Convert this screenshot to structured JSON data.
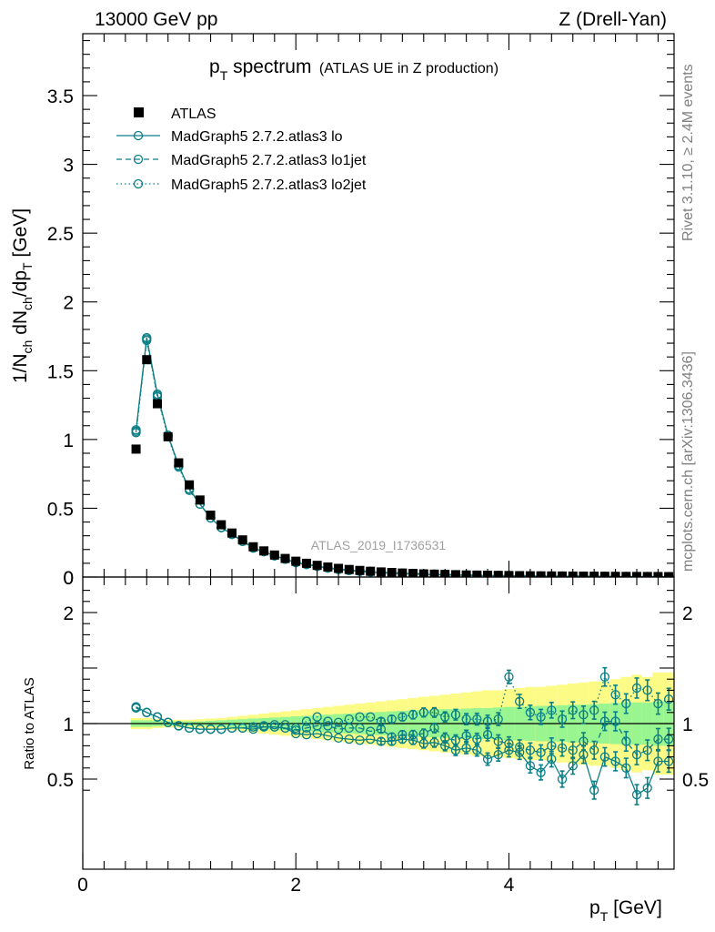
{
  "header": {
    "left": "13000 GeV pp",
    "right": "Z (Drell-Yan)"
  },
  "side_labels": {
    "rivet": "Rivet 3.1.10, ≥ 2.4M events",
    "mcplots": "mcplots.cern.ch [arXiv:1306.3436]"
  },
  "plot_title": {
    "main_p": "p",
    "main_sub": "T",
    "main_rest": " spectrum",
    "note": "(ATLAS UE in Z production)"
  },
  "analysis_id": "ATLAS_2019_I1736531",
  "colors": {
    "data": "#000000",
    "mc": "#0b7f86",
    "band_inner": "#99f58f",
    "band_outer": "#fbfb86",
    "axis": "#000000",
    "side_text": "#808080"
  },
  "chart_data": [
    {
      "type": "line",
      "title": "pT spectrum (ATLAS UE in Z production)",
      "xlabel": "p_T [GeV]",
      "ylabel": "1/N_ch dN_ch/dp_T [GeV]",
      "xlim": [
        0,
        5.55
      ],
      "ylim": [
        0,
        3.95
      ],
      "x_ticks": [
        "0",
        "2",
        "4"
      ],
      "y_ticks": [
        "0",
        "0.5",
        "1",
        "1.5",
        "2",
        "2.5",
        "3",
        "3.5"
      ],
      "legend_position": "top-left",
      "legend": [
        "ATLAS",
        "MadGraph5 2.7.2.atlas3 lo",
        "MadGraph5 2.7.2.atlas3 lo1jet",
        "MadGraph5 2.7.2.atlas3 lo2jet"
      ],
      "x": [
        0.5,
        0.6,
        0.7,
        0.8,
        0.9,
        1.0,
        1.1,
        1.2,
        1.3,
        1.4,
        1.5,
        1.6,
        1.7,
        1.8,
        1.9,
        2.0,
        2.1,
        2.2,
        2.3,
        2.4,
        2.5,
        2.6,
        2.7,
        2.8,
        2.9,
        3.0,
        3.1,
        3.2,
        3.3,
        3.4,
        3.5,
        3.6,
        3.7,
        3.8,
        3.9,
        4.0,
        4.1,
        4.2,
        4.3,
        4.4,
        4.5,
        4.6,
        4.7,
        4.8,
        4.9,
        5.0,
        5.1,
        5.2,
        5.3,
        5.4,
        5.5
      ],
      "series": [
        {
          "name": "ATLAS",
          "marker": "filled-square",
          "values": [
            0.93,
            1.58,
            1.26,
            1.02,
            0.83,
            0.67,
            0.56,
            0.45,
            0.38,
            0.32,
            0.27,
            0.22,
            0.19,
            0.16,
            0.135,
            0.115,
            0.1,
            0.085,
            0.073,
            0.063,
            0.055,
            0.048,
            0.042,
            0.037,
            0.033,
            0.029,
            0.026,
            0.023,
            0.021,
            0.019,
            0.017,
            0.015,
            0.014,
            0.013,
            0.012,
            0.011,
            0.01,
            0.009,
            0.0085,
            0.008,
            0.0075,
            0.007,
            0.0065,
            0.006,
            0.0055,
            0.005,
            0.0046,
            0.0042,
            0.0039,
            0.0036,
            0.0033
          ]
        },
        {
          "name": "MadGraph5 2.7.2.atlas3 lo",
          "style": "solid",
          "values": [
            1.07,
            1.74,
            1.33,
            1.03,
            0.81,
            0.64,
            0.53,
            0.43,
            0.36,
            0.31,
            0.26,
            0.21,
            0.185,
            0.155,
            0.13,
            0.105,
            0.09,
            0.077,
            0.065,
            0.055,
            0.047,
            0.041,
            0.036,
            0.031,
            0.028,
            0.025,
            0.022,
            0.019,
            0.017,
            0.015,
            0.013,
            0.012,
            0.011,
            0.01,
            0.009,
            0.008,
            0.007,
            0.006,
            0.0055,
            0.005,
            0.0045,
            0.0042,
            0.0038,
            0.0035,
            0.003,
            0.0028,
            0.0025,
            0.0023,
            0.002,
            0.0018,
            0.0016
          ]
        },
        {
          "name": "MadGraph5 2.7.2.atlas3 lo1jet",
          "style": "dashed",
          "values": [
            1.06,
            1.73,
            1.32,
            1.03,
            0.81,
            0.64,
            0.53,
            0.43,
            0.36,
            0.31,
            0.26,
            0.215,
            0.185,
            0.155,
            0.13,
            0.107,
            0.092,
            0.079,
            0.067,
            0.057,
            0.05,
            0.044,
            0.039,
            0.034,
            0.03,
            0.027,
            0.024,
            0.021,
            0.019,
            0.017,
            0.015,
            0.013,
            0.012,
            0.011,
            0.01,
            0.009,
            0.008,
            0.0075,
            0.007,
            0.0065,
            0.006,
            0.0055,
            0.005,
            0.0045,
            0.004,
            0.0038,
            0.0035,
            0.0032,
            0.003,
            0.0028,
            0.0026
          ]
        },
        {
          "name": "MadGraph5 2.7.2.atlas3 lo2jet",
          "style": "dotted",
          "values": [
            1.05,
            1.72,
            1.31,
            1.02,
            0.8,
            0.63,
            0.53,
            0.43,
            0.36,
            0.31,
            0.26,
            0.215,
            0.185,
            0.155,
            0.13,
            0.11,
            0.095,
            0.082,
            0.07,
            0.06,
            0.052,
            0.046,
            0.041,
            0.036,
            0.032,
            0.029,
            0.026,
            0.023,
            0.021,
            0.019,
            0.017,
            0.015,
            0.014,
            0.013,
            0.012,
            0.011,
            0.01,
            0.009,
            0.0085,
            0.008,
            0.0075,
            0.007,
            0.0065,
            0.006,
            0.0055,
            0.005,
            0.0046,
            0.0042,
            0.0039,
            0.0036,
            0.0033
          ]
        }
      ]
    },
    {
      "type": "line",
      "xlabel": "p_T [GeV]",
      "ylabel": "Ratio to ATLAS",
      "xlim": [
        0,
        5.55
      ],
      "ylim": [
        0.35,
        2.3
      ],
      "x_ticks": [
        "0",
        "2",
        "4"
      ],
      "y_ticks": [
        "0.5",
        "1",
        "2"
      ],
      "x": [
        0.5,
        0.6,
        0.7,
        0.8,
        0.9,
        1.0,
        1.1,
        1.2,
        1.3,
        1.4,
        1.5,
        1.6,
        1.7,
        1.8,
        1.9,
        2.0,
        2.1,
        2.2,
        2.3,
        2.4,
        2.5,
        2.6,
        2.7,
        2.8,
        2.9,
        3.0,
        3.1,
        3.2,
        3.3,
        3.4,
        3.5,
        3.6,
        3.7,
        3.8,
        3.9,
        4.0,
        4.1,
        4.2,
        4.3,
        4.4,
        4.5,
        4.6,
        4.7,
        4.8,
        4.9,
        5.0,
        5.1,
        5.2,
        5.3,
        5.4,
        5.5
      ],
      "uncertainty_bands": {
        "inner": [
          0.03,
          0.03,
          0.025,
          0.02,
          0.02,
          0.02,
          0.02,
          0.025,
          0.03,
          0.035,
          0.04,
          0.045,
          0.05,
          0.055,
          0.06,
          0.065,
          0.07,
          0.075,
          0.08,
          0.085,
          0.09,
          0.095,
          0.1,
          0.105,
          0.11,
          0.115,
          0.12,
          0.12,
          0.125,
          0.13,
          0.13,
          0.135,
          0.14,
          0.14,
          0.145,
          0.15,
          0.15,
          0.155,
          0.16,
          0.16,
          0.165,
          0.17,
          0.17,
          0.175,
          0.18,
          0.185,
          0.19,
          0.19,
          0.19,
          0.2,
          0.2
        ],
        "outer": [
          0.05,
          0.05,
          0.04,
          0.035,
          0.035,
          0.035,
          0.04,
          0.045,
          0.05,
          0.06,
          0.07,
          0.08,
          0.09,
          0.1,
          0.11,
          0.12,
          0.13,
          0.14,
          0.15,
          0.16,
          0.17,
          0.18,
          0.19,
          0.2,
          0.21,
          0.22,
          0.23,
          0.24,
          0.25,
          0.26,
          0.27,
          0.28,
          0.29,
          0.3,
          0.3,
          0.31,
          0.32,
          0.33,
          0.33,
          0.34,
          0.35,
          0.36,
          0.37,
          0.38,
          0.38,
          0.4,
          0.42,
          0.44,
          0.42,
          0.46,
          0.46
        ]
      },
      "series": [
        {
          "name": "MadGraph5 2.7.2.atlas3 lo",
          "style": "solid",
          "values": [
            1.15,
            1.1,
            1.06,
            1.01,
            0.98,
            0.96,
            0.95,
            0.95,
            0.95,
            0.96,
            0.96,
            0.95,
            0.97,
            0.97,
            0.96,
            0.91,
            0.9,
            0.91,
            0.89,
            0.87,
            0.86,
            0.85,
            0.86,
            0.84,
            0.84,
            0.86,
            0.85,
            0.82,
            0.83,
            0.8,
            0.76,
            0.78,
            0.76,
            0.68,
            0.72,
            0.76,
            0.74,
            0.62,
            0.56,
            0.68,
            0.5,
            0.62,
            0.72,
            0.4,
            0.7,
            0.66,
            0.6,
            0.36,
            0.42,
            0.66,
            0.66
          ]
        },
        {
          "name": "MadGraph5 2.7.2.atlas3 lo1jet",
          "style": "dashed",
          "values": [
            1.14,
            1.1,
            1.06,
            1.01,
            0.98,
            0.96,
            0.95,
            0.95,
            0.95,
            0.96,
            0.96,
            0.97,
            0.97,
            0.97,
            0.96,
            0.94,
            0.96,
            0.98,
            0.98,
            0.95,
            0.96,
            0.96,
            0.93,
            0.95,
            0.88,
            0.9,
            0.9,
            0.91,
            0.96,
            0.87,
            0.85,
            0.89,
            0.86,
            0.9,
            0.84,
            0.82,
            0.79,
            0.76,
            0.74,
            0.8,
            0.78,
            0.76,
            0.84,
            0.76,
            1.02,
            1.02,
            0.84,
            0.72,
            0.76,
            0.86,
            0.86
          ]
        },
        {
          "name": "MadGraph5 2.7.2.atlas3 lo2jet",
          "style": "dotted",
          "values": [
            1.15,
            1.1,
            1.06,
            1.01,
            0.98,
            0.96,
            0.95,
            0.95,
            0.95,
            0.96,
            0.96,
            0.97,
            0.98,
            0.99,
            0.99,
            0.96,
            1.02,
            1.06,
            1.02,
            1.01,
            1.04,
            1.06,
            1.06,
            1.02,
            1.04,
            1.06,
            1.08,
            1.1,
            1.1,
            1.06,
            1.08,
            1.04,
            1.04,
            1.02,
            1.04,
            1.42,
            1.2,
            1.1,
            1.06,
            1.12,
            1.04,
            1.12,
            1.08,
            1.12,
            1.42,
            1.26,
            1.18,
            1.32,
            1.3,
            1.18,
            1.22
          ]
        }
      ]
    }
  ]
}
